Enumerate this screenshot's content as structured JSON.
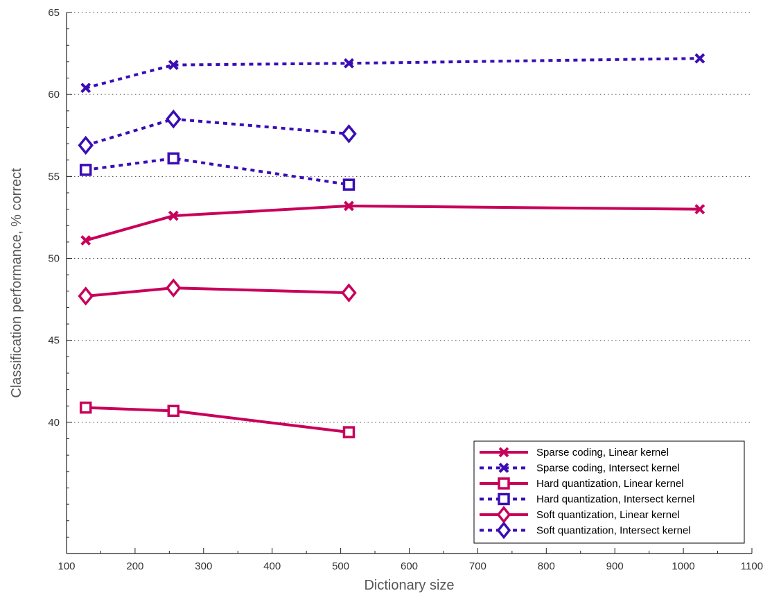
{
  "colors": {
    "linear": "#c8005a",
    "intersect": "#3a0db4",
    "grid": "#444444",
    "axis": "#222222"
  },
  "chart_data": {
    "type": "line",
    "title": "",
    "xlabel": "Dictionary size",
    "ylabel": "Classification performance, % correct",
    "xlim": [
      100,
      1100
    ],
    "ylim": [
      32,
      65
    ],
    "xticks": [
      100,
      200,
      300,
      400,
      500,
      600,
      700,
      800,
      900,
      1000,
      1100
    ],
    "yticks": [
      40,
      45,
      50,
      55,
      60,
      65
    ],
    "grid": "horizontal dotted",
    "legend_position": "bottom-right",
    "series": [
      {
        "name": "Sparse coding, Linear kernel",
        "marker": "x",
        "style": "solid",
        "color": "#c8005a",
        "x": [
          128,
          256,
          512,
          1024
        ],
        "y": [
          51.1,
          52.6,
          53.2,
          53.0
        ]
      },
      {
        "name": "Sparse coding, Intersect kernel",
        "marker": "x",
        "style": "dotted",
        "color": "#3a0db4",
        "x": [
          128,
          256,
          512,
          1024
        ],
        "y": [
          60.4,
          61.8,
          61.9,
          62.2
        ]
      },
      {
        "name": "Hard quantization, Linear kernel",
        "marker": "square",
        "style": "solid",
        "color": "#c8005a",
        "x": [
          128,
          256,
          512
        ],
        "y": [
          40.9,
          40.7,
          39.4
        ]
      },
      {
        "name": "Hard quantization, Intersect kernel",
        "marker": "square",
        "style": "dotted",
        "color": "#3a0db4",
        "x": [
          128,
          256,
          512
        ],
        "y": [
          55.4,
          56.1,
          54.5
        ]
      },
      {
        "name": "Soft quantization, Linear kernel",
        "marker": "diamond",
        "style": "solid",
        "color": "#c8005a",
        "x": [
          128,
          256,
          512
        ],
        "y": [
          47.7,
          48.2,
          47.9
        ]
      },
      {
        "name": "Soft quantization, Intersect kernel",
        "marker": "diamond",
        "style": "dotted",
        "color": "#3a0db4",
        "x": [
          128,
          256,
          512
        ],
        "y": [
          56.9,
          58.5,
          57.6
        ]
      }
    ]
  }
}
